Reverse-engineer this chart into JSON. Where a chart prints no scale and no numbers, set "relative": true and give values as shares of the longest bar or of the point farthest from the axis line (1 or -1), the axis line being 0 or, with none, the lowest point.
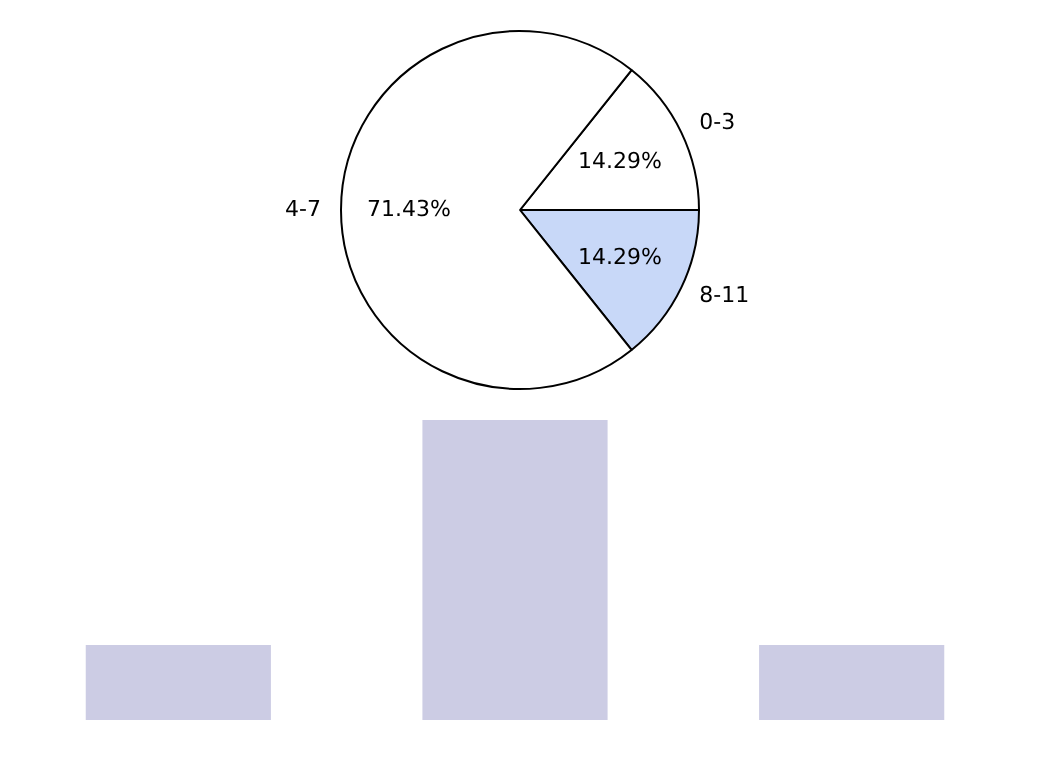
{
  "chart_data": [
    {
      "type": "pie",
      "categories": [
        "0-3",
        "8-11",
        "4-7"
      ],
      "values": [
        14.29,
        14.29,
        71.43
      ],
      "colors": [
        "#ffffff",
        "#c8d8f8",
        "#ffffff"
      ],
      "value_labels": [
        "14.29%",
        "14.29%",
        "71.43%"
      ]
    },
    {
      "type": "bar",
      "relative": true,
      "categories": [
        null,
        null,
        null
      ],
      "values": [
        0.25,
        1,
        0.25
      ],
      "color": "#ccccE4"
    }
  ]
}
